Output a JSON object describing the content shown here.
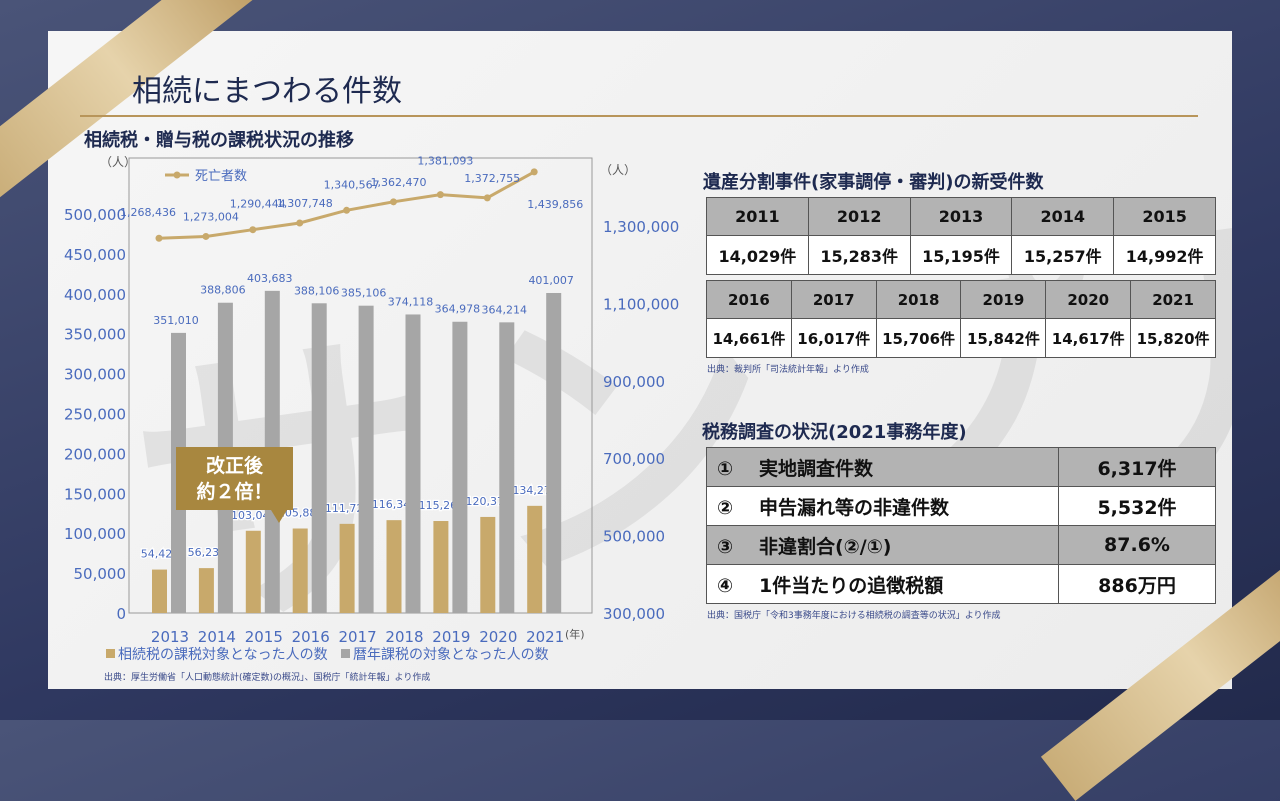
{
  "title": "相続にまつわる件数",
  "watermark": "サンプル",
  "chart_title": "相続税・贈与税の課税状況の推移",
  "callout": [
    "改正後",
    "約２倍！"
  ],
  "chart_source": "出典：厚生労働省「人口動態統計(確定数)の概況」、国税庁「統計年報」より作成",
  "chart_data": {
    "type": "bar+line",
    "title": "相続税・贈与税の課税状況の推移",
    "categories": [
      "2013",
      "2014",
      "2015",
      "2016",
      "2017",
      "2018",
      "2019",
      "2020",
      "2021"
    ],
    "x_unit": "(年)",
    "y_left_unit": "（人）",
    "y_right_unit": "（人）",
    "y_left_ticks": [
      0,
      50000,
      100000,
      150000,
      200000,
      250000,
      300000,
      350000,
      400000,
      450000,
      500000
    ],
    "y_right_ticks": [
      300000,
      500000,
      700000,
      900000,
      1100000,
      1300000
    ],
    "series": [
      {
        "name": "相続税の課税対象となった人の数",
        "type": "bar",
        "axis": "left",
        "color": "#c8a96b",
        "values": [
          54421,
          56239,
          103043,
          105880,
          111728,
          116341,
          115267,
          120372,
          134275
        ]
      },
      {
        "name": "暦年課税の対象となった人の数",
        "type": "bar",
        "axis": "left",
        "color": "#a6a6a6",
        "values": [
          351010,
          388806,
          403683,
          388106,
          385106,
          374118,
          364978,
          364214,
          401007
        ]
      },
      {
        "name": "死亡者数",
        "type": "line",
        "axis": "right",
        "color": "#c8a96b",
        "values": [
          1268436,
          1273004,
          1290444,
          1307748,
          1340567,
          1362470,
          1381093,
          1372755,
          1439856
        ]
      }
    ]
  },
  "estate": {
    "title": "遺産分割事件(家事調停・審判)の新受件数",
    "row1_years": [
      "2011",
      "2012",
      "2013",
      "2014",
      "2015"
    ],
    "row1_values": [
      "14,029件",
      "15,283件",
      "15,195件",
      "15,257件",
      "14,992件"
    ],
    "row2_years": [
      "2016",
      "2017",
      "2018",
      "2019",
      "2020",
      "2021"
    ],
    "row2_values": [
      "14,661件",
      "16,017件",
      "15,706件",
      "15,842件",
      "14,617件",
      "15,820件"
    ],
    "source": "出典：裁判所「司法統計年報」より作成"
  },
  "audit": {
    "title": "税務調査の状況(2021事務年度)",
    "rows": [
      {
        "no": "①",
        "label": "実地調査件数",
        "value": "6,317件"
      },
      {
        "no": "②",
        "label": "申告漏れ等の非違件数",
        "value": "5,532件"
      },
      {
        "no": "③",
        "label": "非違割合(②/①)",
        "value": "87.6%"
      },
      {
        "no": "④",
        "label": "1件当たりの追徴税額",
        "value": "886万円"
      }
    ],
    "source": "出典：国税庁「令和3事務年度における相続税の調査等の状況」より作成"
  }
}
